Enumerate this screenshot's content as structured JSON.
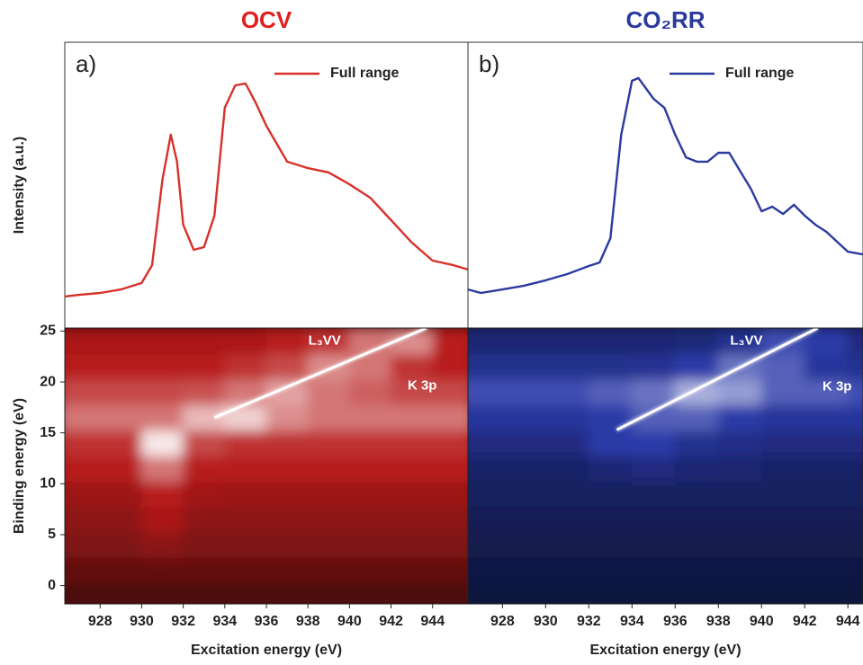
{
  "chart_data": [
    {
      "type": "line",
      "title": "OCV",
      "title_color": "#e0201e",
      "panel_label": "a)",
      "ylabel": "Intensity (a.u.)",
      "legend": "upper right",
      "xlim": [
        926.3,
        945.7
      ],
      "ylim": [
        0,
        106
      ],
      "series": [
        {
          "name": "Full range",
          "color": "#d8302a",
          "x": [
            926.3,
            927,
            928,
            929,
            930,
            930.5,
            931,
            931.4,
            931.7,
            932,
            932.5,
            933,
            933.5,
            934,
            934.5,
            935,
            935.5,
            936,
            937,
            938,
            939,
            940,
            941,
            942,
            943,
            944,
            945,
            945.7
          ],
          "values": [
            11.7,
            12.3,
            13,
            14.3,
            16.7,
            23.3,
            55,
            71.7,
            61.7,
            38.3,
            29,
            30,
            41.7,
            81.7,
            90,
            90.7,
            83.3,
            75,
            61.7,
            59.3,
            57.7,
            53.3,
            48.3,
            40,
            31.7,
            25,
            23.3,
            21.7
          ]
        }
      ]
    },
    {
      "type": "line",
      "title": "CO₂RR",
      "title_color": "#2a3a9c",
      "panel_label": "b)",
      "legend": "upper right",
      "xlim": [
        926.4,
        944.7
      ],
      "ylim": [
        0,
        106
      ],
      "series": [
        {
          "name": "Full range",
          "color": "#2b3aa0",
          "x": [
            926.4,
            927,
            928,
            929,
            930,
            931,
            932,
            932.5,
            933,
            933.5,
            934,
            934.3,
            935,
            935.5,
            936,
            936.5,
            937,
            937.5,
            938,
            938.5,
            939,
            939.5,
            940,
            940.5,
            941,
            941.5,
            942,
            942.5,
            943,
            944,
            944.7
          ],
          "values": [
            14.3,
            13,
            14.3,
            15.7,
            17.7,
            20,
            23,
            24.3,
            33.3,
            71.7,
            91.7,
            92.7,
            85,
            81.7,
            71.7,
            63.3,
            61.7,
            61.7,
            65,
            65,
            58.3,
            51.7,
            43.3,
            45,
            42.3,
            45.7,
            41.7,
            38.3,
            35.7,
            28.3,
            27.3
          ]
        }
      ]
    },
    {
      "type": "heatmap",
      "xlabel": "Excitation energy (eV)",
      "ylabel": "Binding energy (eV)",
      "xlim": [
        926.3,
        945.7
      ],
      "ylim": [
        -1.8,
        25.3
      ],
      "xticks": [
        928,
        930,
        932,
        934,
        936,
        938,
        940,
        942,
        944
      ],
      "yticks": [
        0,
        5,
        10,
        15,
        20,
        25
      ],
      "colormap": [
        "#2a0606",
        "#b81a1a",
        "#ffffff"
      ],
      "x": [
        927,
        929,
        931,
        933,
        935,
        937,
        939,
        941,
        943,
        945
      ],
      "y": [
        -1,
        1.5,
        4,
        6.5,
        9,
        11.5,
        14,
        16.5,
        19,
        21.5,
        24
      ],
      "z": [
        [
          0.12,
          0.12,
          0.12,
          0.12,
          0.12,
          0.12,
          0.12,
          0.12,
          0.12,
          0.12
        ],
        [
          0.2,
          0.2,
          0.2,
          0.2,
          0.2,
          0.2,
          0.2,
          0.2,
          0.2,
          0.2
        ],
        [
          0.3,
          0.3,
          0.35,
          0.3,
          0.3,
          0.3,
          0.3,
          0.3,
          0.3,
          0.3
        ],
        [
          0.35,
          0.35,
          0.45,
          0.35,
          0.35,
          0.35,
          0.35,
          0.35,
          0.35,
          0.35
        ],
        [
          0.4,
          0.4,
          0.5,
          0.42,
          0.4,
          0.4,
          0.4,
          0.4,
          0.4,
          0.4
        ],
        [
          0.5,
          0.5,
          0.7,
          0.5,
          0.5,
          0.5,
          0.5,
          0.5,
          0.5,
          0.5
        ],
        [
          0.55,
          0.55,
          0.95,
          0.6,
          0.55,
          0.55,
          0.55,
          0.55,
          0.55,
          0.55
        ],
        [
          0.7,
          0.7,
          0.7,
          0.85,
          0.9,
          0.75,
          0.7,
          0.7,
          0.7,
          0.7
        ],
        [
          0.6,
          0.6,
          0.6,
          0.62,
          0.7,
          0.8,
          0.7,
          0.65,
          0.6,
          0.6
        ],
        [
          0.5,
          0.5,
          0.5,
          0.5,
          0.55,
          0.6,
          0.75,
          0.7,
          0.55,
          0.5
        ],
        [
          0.45,
          0.45,
          0.45,
          0.45,
          0.45,
          0.5,
          0.55,
          0.7,
          0.75,
          0.5
        ]
      ],
      "lines": [
        {
          "x": [
            926.3,
            945.7
          ],
          "y": [
            17.5,
            17.5
          ]
        },
        {
          "x": [
            933.5,
            943.7
          ],
          "y": [
            16.5,
            25.3
          ]
        }
      ],
      "annotations": [
        {
          "text": "L₃VV",
          "x": 938.8,
          "y": 24
        },
        {
          "text": "K 3p",
          "x": 943.5,
          "y": 19.6
        }
      ]
    },
    {
      "type": "heatmap",
      "xlabel": "Excitation energy (eV)",
      "xlim": [
        926.4,
        944.7
      ],
      "ylim": [
        -1.8,
        25.3
      ],
      "xticks": [
        928,
        930,
        932,
        934,
        936,
        938,
        940,
        942,
        944
      ],
      "colormap": [
        "#080c24",
        "#2a3aa8",
        "#ffffff"
      ],
      "x": [
        927,
        929,
        931,
        933,
        935,
        937,
        939,
        941,
        943,
        945
      ],
      "y": [
        -1,
        1.5,
        4,
        6.5,
        9,
        11.5,
        14,
        16.5,
        19,
        21.5,
        24
      ],
      "z": [
        [
          0.1,
          0.1,
          0.1,
          0.1,
          0.1,
          0.1,
          0.1,
          0.1,
          0.1,
          0.1
        ],
        [
          0.12,
          0.12,
          0.12,
          0.12,
          0.12,
          0.12,
          0.12,
          0.12,
          0.12,
          0.12
        ],
        [
          0.15,
          0.15,
          0.15,
          0.15,
          0.15,
          0.15,
          0.15,
          0.15,
          0.15,
          0.15
        ],
        [
          0.18,
          0.18,
          0.18,
          0.18,
          0.18,
          0.18,
          0.18,
          0.18,
          0.18,
          0.18
        ],
        [
          0.22,
          0.22,
          0.22,
          0.22,
          0.22,
          0.22,
          0.22,
          0.22,
          0.22,
          0.22
        ],
        [
          0.25,
          0.25,
          0.25,
          0.3,
          0.35,
          0.3,
          0.28,
          0.25,
          0.25,
          0.25
        ],
        [
          0.35,
          0.35,
          0.35,
          0.5,
          0.5,
          0.4,
          0.38,
          0.35,
          0.35,
          0.35
        ],
        [
          0.45,
          0.45,
          0.45,
          0.5,
          0.6,
          0.6,
          0.5,
          0.45,
          0.45,
          0.45
        ],
        [
          0.55,
          0.55,
          0.55,
          0.6,
          0.65,
          0.8,
          0.75,
          0.6,
          0.6,
          0.55
        ],
        [
          0.4,
          0.4,
          0.4,
          0.4,
          0.42,
          0.5,
          0.65,
          0.6,
          0.45,
          0.4
        ],
        [
          0.3,
          0.3,
          0.3,
          0.3,
          0.3,
          0.32,
          0.4,
          0.55,
          0.5,
          0.35
        ]
      ],
      "lines": [
        {
          "x": [
            926.4,
            944.7
          ],
          "y": [
            19,
            19
          ]
        },
        {
          "x": [
            933.3,
            942.6
          ],
          "y": [
            15.3,
            25.3
          ]
        }
      ],
      "annotations": [
        {
          "text": "L₃VV",
          "x": 939.3,
          "y": 24
        },
        {
          "text": "K 3p",
          "x": 943.5,
          "y": 19.5
        }
      ]
    }
  ]
}
